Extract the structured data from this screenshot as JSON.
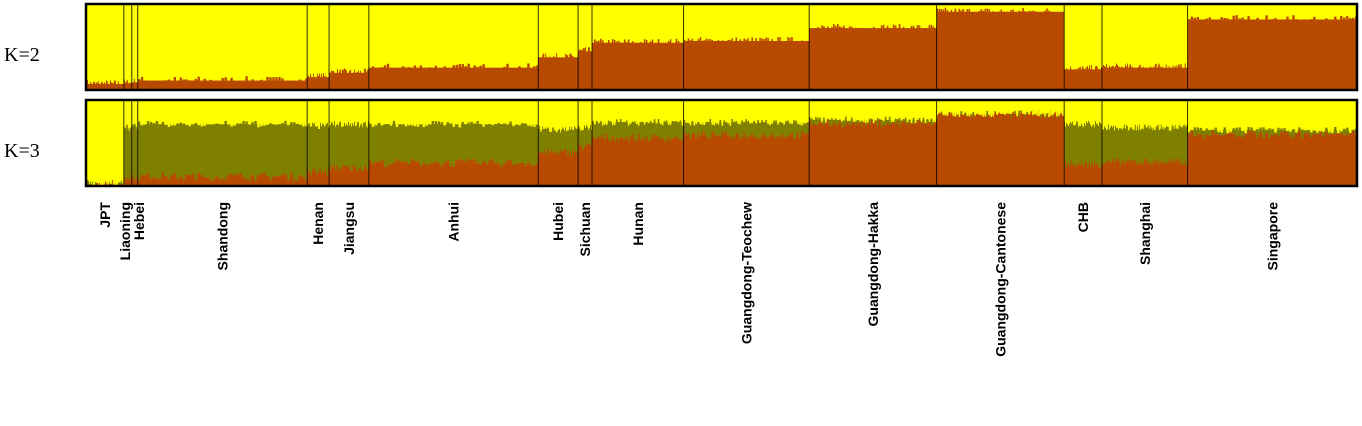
{
  "chart_data": {
    "type": "bar",
    "title": "",
    "xlabel": "",
    "ylabel": "",
    "colors": {
      "yellow": "#ffff00",
      "orange": "#b84a00",
      "olive": "#808000",
      "frame": "#000000"
    },
    "populations": [
      {
        "name": "JPT",
        "n": 38,
        "k2": [
          0.93,
          0.07
        ],
        "k3": [
          0.97,
          0.0,
          0.03
        ]
      },
      {
        "name": "Liaoning",
        "n": 8,
        "k2": [
          0.92,
          0.08
        ],
        "k3": [
          0.32,
          0.58,
          0.1
        ]
      },
      {
        "name": "Hebei",
        "n": 6,
        "k2": [
          0.91,
          0.09
        ],
        "k3": [
          0.3,
          0.6,
          0.1
        ]
      },
      {
        "name": "Shandong",
        "n": 170,
        "k2": [
          0.89,
          0.11
        ],
        "k3": [
          0.28,
          0.61,
          0.11
        ]
      },
      {
        "name": "Henan",
        "n": 22,
        "k2": [
          0.85,
          0.15
        ],
        "k3": [
          0.3,
          0.54,
          0.16
        ]
      },
      {
        "name": "Jiangsu",
        "n": 40,
        "k2": [
          0.8,
          0.2
        ],
        "k3": [
          0.28,
          0.51,
          0.21
        ]
      },
      {
        "name": "Anhui",
        "n": 170,
        "k2": [
          0.74,
          0.26
        ],
        "k3": [
          0.28,
          0.45,
          0.27
        ]
      },
      {
        "name": "Hubei",
        "n": 40,
        "k2": [
          0.62,
          0.38
        ],
        "k3": [
          0.34,
          0.27,
          0.39
        ]
      },
      {
        "name": "Sichuan",
        "n": 14,
        "k2": [
          0.55,
          0.45
        ],
        "k3": [
          0.32,
          0.22,
          0.46
        ]
      },
      {
        "name": "Hunan",
        "n": 92,
        "k2": [
          0.45,
          0.55
        ],
        "k3": [
          0.26,
          0.18,
          0.56
        ]
      },
      {
        "name": "Guangdong-Teochew",
        "n": 126,
        "k2": [
          0.43,
          0.57
        ],
        "k3": [
          0.26,
          0.15,
          0.59
        ]
      },
      {
        "name": "Guangdong-Hakka",
        "n": 128,
        "k2": [
          0.28,
          0.72
        ],
        "k3": [
          0.23,
          0.04,
          0.73
        ]
      },
      {
        "name": "Guangdong-Cantonese",
        "n": 128,
        "k2": [
          0.09,
          0.91
        ],
        "k3": [
          0.16,
          0.0,
          0.84
        ]
      },
      {
        "name": "CHB",
        "n": 38,
        "k2": [
          0.76,
          0.24
        ],
        "k3": [
          0.28,
          0.47,
          0.25
        ]
      },
      {
        "name": "Shanghai",
        "n": 86,
        "k2": [
          0.74,
          0.26
        ],
        "k3": [
          0.32,
          0.4,
          0.28
        ]
      },
      {
        "name": "Singapore",
        "n": 170,
        "k2": [
          0.18,
          0.82
        ],
        "k3": [
          0.35,
          0.05,
          0.6
        ]
      }
    ],
    "panels": [
      {
        "label": "K=2",
        "key": "k2",
        "components": [
          "yellow",
          "orange"
        ]
      },
      {
        "label": "K=3",
        "key": "k3",
        "components": [
          "yellow",
          "olive",
          "orange"
        ]
      }
    ]
  }
}
